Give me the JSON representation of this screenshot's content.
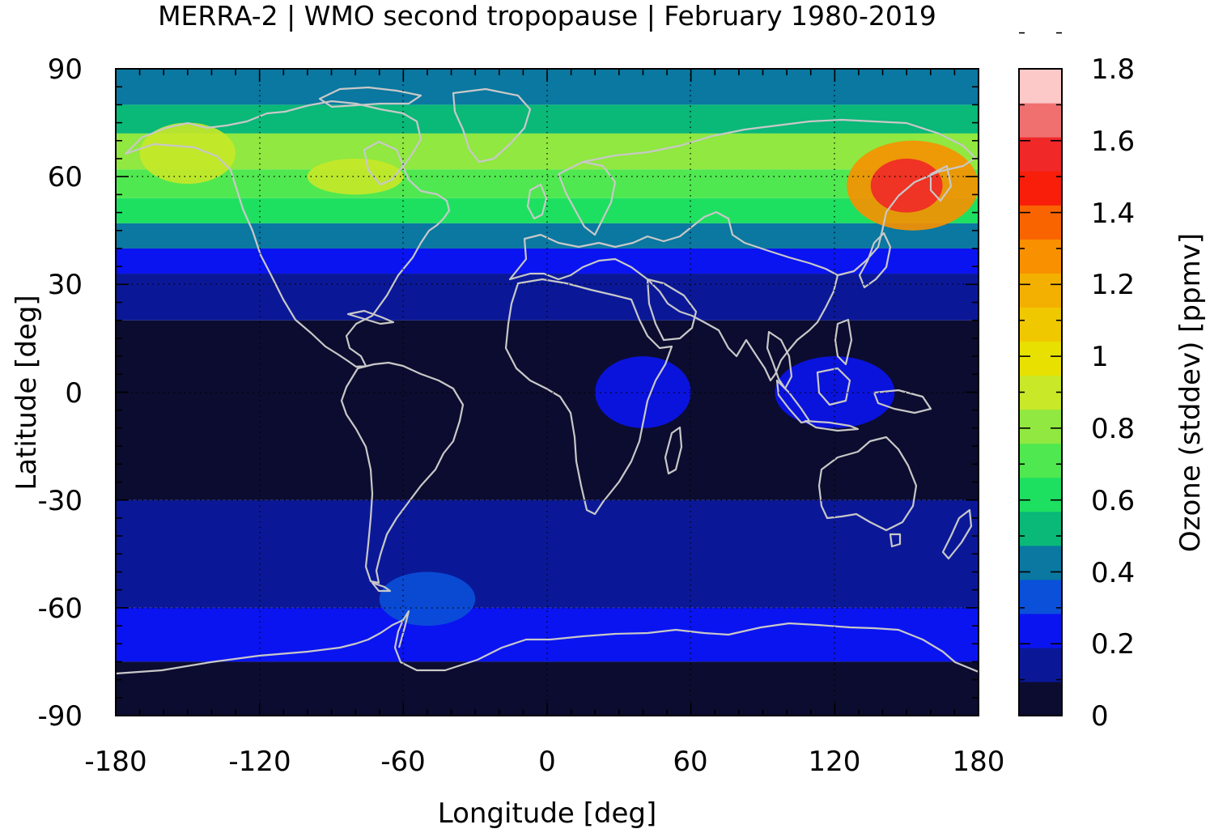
{
  "title": "MERRA-2 | WMO second tropopause | February 1980-2019",
  "map": {
    "xlabel": "Longitude [deg]",
    "ylabel": "Latitude [deg]",
    "xlim": [
      -180,
      180
    ],
    "ylim": [
      -90,
      90
    ],
    "xticks": [
      "-180",
      "-120",
      "-60",
      "0",
      "60",
      "120",
      "180"
    ],
    "yticks": [
      "90",
      "60",
      "30",
      "0",
      "-30",
      "-60",
      "-90"
    ],
    "grid": "dotted at 60° longitude / 30° latitude intervals",
    "coastline_color": "#c0c0c0"
  },
  "colorbar": {
    "label": "Ozone (stddev) [ppmv]",
    "min": 0,
    "max": 1.8,
    "step": 0.1,
    "ticks": [
      "1.8",
      "1.6",
      "1.4",
      "1.2",
      "1",
      "0.8",
      "0.6",
      "0.4",
      "0.2",
      "0"
    ],
    "colors": [
      "#0c0c30",
      "#0a1898",
      "#0a14f0",
      "#0a50d8",
      "#0a78a0",
      "#0ab878",
      "#1ee060",
      "#50e850",
      "#90e840",
      "#c8e828",
      "#e8e000",
      "#f0c800",
      "#f4b000",
      "#f89000",
      "#fa6400",
      "#f81e0a",
      "#f02828",
      "#f07070",
      "#fcc8c8"
    ]
  },
  "chart_data": {
    "type": "heatmap",
    "title": "MERRA-2 | WMO second tropopause | February 1980-2019",
    "xlabel": "Longitude [deg]",
    "ylabel": "Latitude [deg]",
    "xlim": [
      -180,
      180
    ],
    "ylim": [
      -90,
      90
    ],
    "value_label": "Ozone (stddev) [ppmv]",
    "value_range": [
      0,
      1.8
    ],
    "zonal_bands": [
      {
        "lat_from": 90,
        "lat_to": 80,
        "value": 0.45
      },
      {
        "lat_from": 80,
        "lat_to": 72,
        "value": 0.55
      },
      {
        "lat_from": 72,
        "lat_to": 62,
        "value": 0.8
      },
      {
        "lat_from": 62,
        "lat_to": 54,
        "value": 0.75
      },
      {
        "lat_from": 54,
        "lat_to": 47,
        "value": 0.6
      },
      {
        "lat_from": 47,
        "lat_to": 40,
        "value": 0.45
      },
      {
        "lat_from": 40,
        "lat_to": 33,
        "value": 0.25
      },
      {
        "lat_from": 33,
        "lat_to": 20,
        "value": 0.15
      },
      {
        "lat_from": 20,
        "lat_to": -30,
        "value": 0.05
      },
      {
        "lat_from": -30,
        "lat_to": -60,
        "value": 0.15
      },
      {
        "lat_from": -60,
        "lat_to": -75,
        "value": 0.2
      },
      {
        "lat_from": -75,
        "lat_to": -90,
        "value": 0.05
      }
    ],
    "regional_features": [
      {
        "lon": [
          -170,
          -130
        ],
        "lat": [
          58,
          75
        ],
        "value": 0.9
      },
      {
        "lon": [
          -100,
          -60
        ],
        "lat": [
          55,
          65
        ],
        "value": 0.9
      },
      {
        "lon": [
          125,
          180
        ],
        "lat": [
          45,
          70
        ],
        "value": 1.3
      },
      {
        "lon": [
          135,
          165
        ],
        "lat": [
          50,
          65
        ],
        "value": 1.6
      },
      {
        "lon": [
          20,
          60
        ],
        "lat": [
          -10,
          10
        ],
        "value": 0.25
      },
      {
        "lon": [
          95,
          145
        ],
        "lat": [
          -10,
          10
        ],
        "value": 0.25
      },
      {
        "lon": [
          -70,
          -30
        ],
        "lat": [
          -65,
          -50
        ],
        "value": 0.3
      }
    ]
  }
}
